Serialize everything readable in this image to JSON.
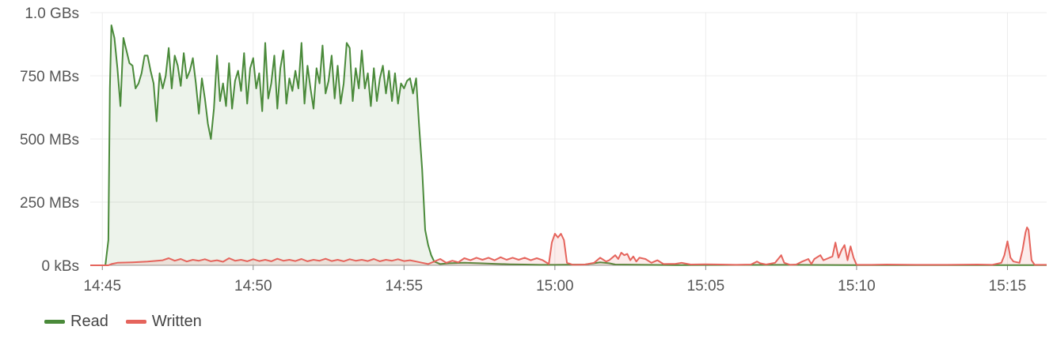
{
  "chart_data": {
    "type": "area",
    "title": "",
    "xlabel": "",
    "ylabel": "",
    "x_ticks": [
      "14:45",
      "14:50",
      "14:55",
      "15:00",
      "15:05",
      "15:10",
      "15:15"
    ],
    "x_tick_minutes": [
      45,
      50,
      55,
      60,
      65,
      70,
      75
    ],
    "x_range_minutes": [
      44.6,
      76.3
    ],
    "y_ticks": [
      {
        "value": 0,
        "label": "0 kBs"
      },
      {
        "value": 250,
        "label": "250 MBs"
      },
      {
        "value": 500,
        "label": "500 MBs"
      },
      {
        "value": 750,
        "label": "750 MBs"
      },
      {
        "value": 1000,
        "label": "1.0 GBs"
      }
    ],
    "y_unit": "MBs",
    "ylim": [
      0,
      1000
    ],
    "grid": true,
    "legend_position": "bottom-left",
    "series": [
      {
        "name": "Read",
        "color": "#4a8a3a",
        "fill": "rgba(74,138,58,0.10)",
        "points": [
          [
            44.6,
            0
          ],
          [
            45.1,
            0
          ],
          [
            45.2,
            100
          ],
          [
            45.25,
            700
          ],
          [
            45.3,
            950
          ],
          [
            45.4,
            900
          ],
          [
            45.5,
            780
          ],
          [
            45.6,
            630
          ],
          [
            45.7,
            900
          ],
          [
            45.8,
            850
          ],
          [
            45.9,
            800
          ],
          [
            46.0,
            790
          ],
          [
            46.1,
            700
          ],
          [
            46.2,
            720
          ],
          [
            46.3,
            760
          ],
          [
            46.4,
            830
          ],
          [
            46.5,
            830
          ],
          [
            46.6,
            770
          ],
          [
            46.7,
            720
          ],
          [
            46.8,
            570
          ],
          [
            46.9,
            760
          ],
          [
            47.0,
            700
          ],
          [
            47.1,
            750
          ],
          [
            47.2,
            860
          ],
          [
            47.3,
            700
          ],
          [
            47.4,
            830
          ],
          [
            47.5,
            790
          ],
          [
            47.6,
            710
          ],
          [
            47.7,
            840
          ],
          [
            47.8,
            740
          ],
          [
            47.9,
            770
          ],
          [
            48.0,
            820
          ],
          [
            48.1,
            720
          ],
          [
            48.2,
            600
          ],
          [
            48.3,
            740
          ],
          [
            48.4,
            660
          ],
          [
            48.5,
            560
          ],
          [
            48.6,
            500
          ],
          [
            48.7,
            620
          ],
          [
            48.8,
            830
          ],
          [
            48.9,
            650
          ],
          [
            49.0,
            720
          ],
          [
            49.1,
            630
          ],
          [
            49.2,
            800
          ],
          [
            49.3,
            620
          ],
          [
            49.4,
            730
          ],
          [
            49.5,
            770
          ],
          [
            49.6,
            690
          ],
          [
            49.7,
            840
          ],
          [
            49.8,
            640
          ],
          [
            49.9,
            780
          ],
          [
            50.0,
            820
          ],
          [
            50.1,
            700
          ],
          [
            50.2,
            760
          ],
          [
            50.3,
            610
          ],
          [
            50.4,
            880
          ],
          [
            50.5,
            660
          ],
          [
            50.6,
            720
          ],
          [
            50.7,
            830
          ],
          [
            50.8,
            620
          ],
          [
            50.9,
            780
          ],
          [
            51.0,
            850
          ],
          [
            51.1,
            640
          ],
          [
            51.2,
            740
          ],
          [
            51.3,
            690
          ],
          [
            51.4,
            770
          ],
          [
            51.5,
            700
          ],
          [
            51.6,
            880
          ],
          [
            51.7,
            640
          ],
          [
            51.8,
            790
          ],
          [
            51.9,
            700
          ],
          [
            52.0,
            620
          ],
          [
            52.1,
            780
          ],
          [
            52.2,
            720
          ],
          [
            52.3,
            870
          ],
          [
            52.4,
            680
          ],
          [
            52.5,
            730
          ],
          [
            52.6,
            830
          ],
          [
            52.7,
            660
          ],
          [
            52.8,
            790
          ],
          [
            52.9,
            640
          ],
          [
            53.0,
            720
          ],
          [
            53.1,
            880
          ],
          [
            53.2,
            860
          ],
          [
            53.3,
            650
          ],
          [
            53.4,
            780
          ],
          [
            53.5,
            700
          ],
          [
            53.6,
            850
          ],
          [
            53.7,
            700
          ],
          [
            53.8,
            760
          ],
          [
            53.9,
            630
          ],
          [
            54.0,
            780
          ],
          [
            54.1,
            650
          ],
          [
            54.2,
            740
          ],
          [
            54.3,
            790
          ],
          [
            54.4,
            680
          ],
          [
            54.5,
            770
          ],
          [
            54.6,
            650
          ],
          [
            54.7,
            760
          ],
          [
            54.8,
            640
          ],
          [
            54.9,
            720
          ],
          [
            55.0,
            700
          ],
          [
            55.1,
            730
          ],
          [
            55.2,
            740
          ],
          [
            55.3,
            680
          ],
          [
            55.4,
            740
          ],
          [
            55.5,
            550
          ],
          [
            55.6,
            380
          ],
          [
            55.7,
            140
          ],
          [
            55.8,
            80
          ],
          [
            55.9,
            40
          ],
          [
            56.0,
            15
          ],
          [
            56.2,
            5
          ],
          [
            56.5,
            8
          ],
          [
            57.0,
            10
          ],
          [
            57.5,
            8
          ],
          [
            58.0,
            6
          ],
          [
            58.5,
            4
          ],
          [
            59.0,
            3
          ],
          [
            59.5,
            2
          ],
          [
            60.0,
            2
          ],
          [
            61.0,
            3
          ],
          [
            61.5,
            12
          ],
          [
            61.8,
            8
          ],
          [
            62.0,
            3
          ],
          [
            63.0,
            2
          ],
          [
            64.0,
            1
          ],
          [
            68.0,
            2
          ],
          [
            70.0,
            1
          ],
          [
            76.3,
            1
          ]
        ]
      },
      {
        "name": "Written",
        "color": "#e5645c",
        "fill": "rgba(229,100,92,0.12)",
        "points": [
          [
            44.6,
            0
          ],
          [
            45.2,
            0
          ],
          [
            45.3,
            5
          ],
          [
            45.5,
            10
          ],
          [
            46.0,
            12
          ],
          [
            46.5,
            15
          ],
          [
            47.0,
            20
          ],
          [
            47.2,
            28
          ],
          [
            47.4,
            18
          ],
          [
            47.6,
            25
          ],
          [
            47.8,
            15
          ],
          [
            48.0,
            22
          ],
          [
            48.2,
            18
          ],
          [
            48.4,
            24
          ],
          [
            48.6,
            16
          ],
          [
            48.8,
            20
          ],
          [
            49.0,
            14
          ],
          [
            49.2,
            28
          ],
          [
            49.4,
            18
          ],
          [
            49.6,
            22
          ],
          [
            49.8,
            16
          ],
          [
            50.0,
            24
          ],
          [
            50.2,
            17
          ],
          [
            50.4,
            22
          ],
          [
            50.6,
            16
          ],
          [
            50.8,
            26
          ],
          [
            51.0,
            18
          ],
          [
            51.2,
            22
          ],
          [
            51.4,
            17
          ],
          [
            51.6,
            25
          ],
          [
            51.8,
            16
          ],
          [
            52.0,
            22
          ],
          [
            52.2,
            18
          ],
          [
            52.4,
            26
          ],
          [
            52.6,
            17
          ],
          [
            52.8,
            22
          ],
          [
            53.0,
            16
          ],
          [
            53.2,
            24
          ],
          [
            53.4,
            18
          ],
          [
            53.6,
            22
          ],
          [
            53.8,
            17
          ],
          [
            54.0,
            25
          ],
          [
            54.2,
            16
          ],
          [
            54.4,
            22
          ],
          [
            54.6,
            18
          ],
          [
            54.8,
            24
          ],
          [
            55.0,
            17
          ],
          [
            55.2,
            20
          ],
          [
            55.4,
            15
          ],
          [
            55.6,
            10
          ],
          [
            55.8,
            5
          ],
          [
            56.0,
            15
          ],
          [
            56.2,
            25
          ],
          [
            56.4,
            10
          ],
          [
            56.6,
            18
          ],
          [
            56.8,
            12
          ],
          [
            57.0,
            28
          ],
          [
            57.2,
            20
          ],
          [
            57.4,
            30
          ],
          [
            57.6,
            22
          ],
          [
            57.8,
            30
          ],
          [
            58.0,
            20
          ],
          [
            58.2,
            32
          ],
          [
            58.4,
            22
          ],
          [
            58.6,
            30
          ],
          [
            58.8,
            22
          ],
          [
            59.0,
            30
          ],
          [
            59.2,
            20
          ],
          [
            59.4,
            28
          ],
          [
            59.6,
            20
          ],
          [
            59.8,
            5
          ],
          [
            59.9,
            90
          ],
          [
            60.0,
            125
          ],
          [
            60.1,
            110
          ],
          [
            60.2,
            125
          ],
          [
            60.3,
            100
          ],
          [
            60.4,
            10
          ],
          [
            60.6,
            2
          ],
          [
            61.0,
            3
          ],
          [
            61.3,
            10
          ],
          [
            61.5,
            30
          ],
          [
            61.7,
            15
          ],
          [
            61.8,
            20
          ],
          [
            62.0,
            40
          ],
          [
            62.1,
            25
          ],
          [
            62.2,
            50
          ],
          [
            62.3,
            40
          ],
          [
            62.4,
            45
          ],
          [
            62.5,
            20
          ],
          [
            62.6,
            35
          ],
          [
            62.7,
            15
          ],
          [
            62.8,
            30
          ],
          [
            63.0,
            25
          ],
          [
            63.2,
            10
          ],
          [
            63.4,
            20
          ],
          [
            63.6,
            5
          ],
          [
            64.0,
            6
          ],
          [
            64.2,
            10
          ],
          [
            64.5,
            3
          ],
          [
            65.0,
            4
          ],
          [
            65.5,
            3
          ],
          [
            66.0,
            2
          ],
          [
            66.5,
            3
          ],
          [
            66.7,
            15
          ],
          [
            66.8,
            8
          ],
          [
            67.0,
            3
          ],
          [
            67.3,
            10
          ],
          [
            67.5,
            40
          ],
          [
            67.6,
            10
          ],
          [
            67.8,
            2
          ],
          [
            68.0,
            3
          ],
          [
            68.2,
            15
          ],
          [
            68.4,
            25
          ],
          [
            68.5,
            5
          ],
          [
            68.6,
            25
          ],
          [
            68.8,
            40
          ],
          [
            68.9,
            20
          ],
          [
            69.0,
            25
          ],
          [
            69.2,
            35
          ],
          [
            69.3,
            90
          ],
          [
            69.4,
            30
          ],
          [
            69.5,
            60
          ],
          [
            69.6,
            80
          ],
          [
            69.7,
            20
          ],
          [
            69.8,
            75
          ],
          [
            69.9,
            30
          ],
          [
            70.0,
            2
          ],
          [
            70.5,
            2
          ],
          [
            71.0,
            3
          ],
          [
            72.0,
            2
          ],
          [
            73.0,
            2
          ],
          [
            74.0,
            3
          ],
          [
            74.5,
            2
          ],
          [
            74.8,
            10
          ],
          [
            74.9,
            40
          ],
          [
            75.0,
            95
          ],
          [
            75.1,
            30
          ],
          [
            75.2,
            15
          ],
          [
            75.4,
            10
          ],
          [
            75.5,
            60
          ],
          [
            75.6,
            130
          ],
          [
            75.65,
            150
          ],
          [
            75.7,
            140
          ],
          [
            75.8,
            20
          ],
          [
            75.9,
            2
          ],
          [
            76.3,
            2
          ]
        ]
      }
    ]
  }
}
